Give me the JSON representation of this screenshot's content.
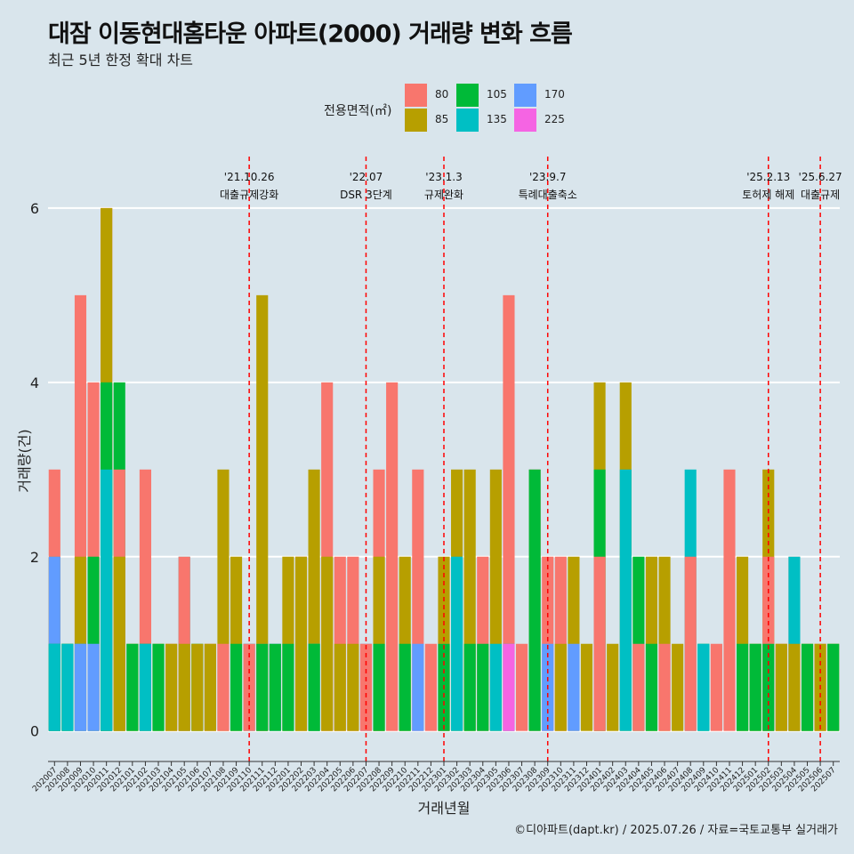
{
  "chart_data": {
    "type": "bar",
    "title": "대잠 이동현대홈타운 아파트(2000) 거래량 변화 흐름",
    "subtitle": "최근 5년 한정 확대 차트",
    "xlabel": "거래년월",
    "ylabel": "거래량(건)",
    "ylim": [
      -0.35,
      6.55
    ],
    "yticks": [
      0,
      2,
      4,
      6
    ],
    "caption": "©디아파트(dapt.kr) / 2025.07.26 / 자료=국토교통부 실거래가",
    "legend": {
      "title": "전용면적(㎡)",
      "position": "top",
      "entries": [
        {
          "label": "80",
          "color": "#f8766d"
        },
        {
          "label": "85",
          "color": "#b79f00"
        },
        {
          "label": "105",
          "color": "#00ba38"
        },
        {
          "label": "135",
          "color": "#00bfc4"
        },
        {
          "label": "170",
          "color": "#619cff"
        },
        {
          "label": "225",
          "color": "#f564e3"
        }
      ]
    },
    "months": [
      "202007",
      "202008",
      "202009",
      "202010",
      "202011",
      "202012",
      "202101",
      "202102",
      "202103",
      "202104",
      "202105",
      "202106",
      "202107",
      "202108",
      "202109",
      "202110",
      "202111",
      "202112",
      "202201",
      "202202",
      "202203",
      "202204",
      "202205",
      "202206",
      "202207",
      "202208",
      "202209",
      "202210",
      "202211",
      "202212",
      "202301",
      "202302",
      "202303",
      "202304",
      "202305",
      "202306",
      "202307",
      "202308",
      "202309",
      "202310",
      "202311",
      "202312",
      "202401",
      "202402",
      "202403",
      "202404",
      "202405",
      "202406",
      "202407",
      "202408",
      "202409",
      "202410",
      "202411",
      "202412",
      "202501",
      "202502",
      "202503",
      "202504",
      "202505",
      "202506",
      "202507"
    ],
    "monthly_values": [
      [
        {
          "s": "80",
          "v": 3
        },
        {
          "s": "85",
          "v": 2
        },
        {
          "s": "105",
          "v": 1
        },
        {
          "s": "135",
          "v": 1
        },
        {
          "s": "170",
          "v": 2
        }
      ],
      [
        {
          "s": "85",
          "v": 1
        },
        {
          "s": "105",
          "v": 1
        },
        {
          "s": "135",
          "v": 1
        }
      ],
      [
        {
          "s": "80",
          "v": 5
        },
        {
          "s": "85",
          "v": 2
        },
        {
          "s": "135",
          "v": 1
        },
        {
          "s": "170",
          "v": 1
        }
      ],
      [
        {
          "s": "80",
          "v": 4
        },
        {
          "s": "105",
          "v": 2
        },
        {
          "s": "170",
          "v": 1
        }
      ],
      [
        {
          "s": "80",
          "v": 6
        },
        {
          "s": "85",
          "v": 6
        },
        {
          "s": "105",
          "v": 4
        },
        {
          "s": "135",
          "v": 3
        }
      ],
      [
        {
          "s": "80",
          "v": 3
        },
        {
          "s": "85",
          "v": 2
        },
        {
          "s": "105",
          "v": 4
        }
      ],
      [
        {
          "s": "85",
          "v": 1
        },
        {
          "s": "105",
          "v": 1
        }
      ],
      [
        {
          "s": "80",
          "v": 3
        },
        {
          "s": "105",
          "v": 1
        },
        {
          "s": "135",
          "v": 1
        }
      ],
      [
        {
          "s": "85",
          "v": 1
        },
        {
          "s": "105",
          "v": 1
        }
      ],
      [
        {
          "s": "80",
          "v": 1
        },
        {
          "s": "85",
          "v": 1
        }
      ],
      [
        {
          "s": "85",
          "v": 1
        },
        {
          "s": "135",
          "v": 2
        },
        {
          "s": "80",
          "v": 2
        }
      ],
      [
        {
          "s": "105",
          "v": 1
        },
        {
          "s": "85",
          "v": 1
        }
      ],
      [
        {
          "s": "80",
          "v": 1
        },
        {
          "s": "85",
          "v": 1
        }
      ],
      [
        {
          "s": "80",
          "v": 1
        },
        {
          "s": "85",
          "v": 3
        }
      ],
      [
        {
          "s": "85",
          "v": 2
        },
        {
          "s": "105",
          "v": 1
        }
      ],
      [
        {
          "s": "135",
          "v": 1
        },
        {
          "s": "80",
          "v": 1
        }
      ],
      [
        {
          "s": "80",
          "v": 1
        },
        {
          "s": "85",
          "v": 5
        },
        {
          "s": "105",
          "v": 1
        }
      ],
      [
        {
          "s": "170",
          "v": 1
        },
        {
          "s": "105",
          "v": 1
        }
      ],
      [
        {
          "s": "85",
          "v": 2
        },
        {
          "s": "105",
          "v": 1
        }
      ],
      [
        {
          "s": "80",
          "v": 2
        },
        {
          "s": "85",
          "v": 2
        }
      ],
      [
        {
          "s": "135",
          "v": 1
        },
        {
          "s": "85",
          "v": 3
        },
        {
          "s": "105",
          "v": 1
        }
      ],
      [
        {
          "s": "80",
          "v": 4
        },
        {
          "s": "85",
          "v": 2
        }
      ],
      [
        {
          "s": "80",
          "v": 2
        },
        {
          "s": "85",
          "v": 1
        }
      ],
      [
        {
          "s": "80",
          "v": 2
        },
        {
          "s": "85",
          "v": 1
        }
      ],
      [
        {
          "s": "170",
          "v": 1
        },
        {
          "s": "80",
          "v": 1
        }
      ],
      [
        {
          "s": "80",
          "v": 3
        },
        {
          "s": "85",
          "v": 2
        },
        {
          "s": "105",
          "v": 1
        }
      ],
      [
        {
          "s": "80",
          "v": 4
        }
      ],
      [
        {
          "s": "85",
          "v": 2
        },
        {
          "s": "105",
          "v": 1
        }
      ],
      [
        {
          "s": "80",
          "v": 3
        },
        {
          "s": "170",
          "v": 1
        }
      ],
      [
        {
          "s": "80",
          "v": 1
        }
      ],
      [
        {
          "s": "80",
          "v": 1
        },
        {
          "s": "85",
          "v": 2
        },
        {
          "s": "105",
          "v": 1
        }
      ],
      [
        {
          "s": "85",
          "v": 3
        },
        {
          "s": "135",
          "v": 2
        }
      ],
      [
        {
          "s": "85",
          "v": 3
        },
        {
          "s": "105",
          "v": 1
        }
      ],
      [
        {
          "s": "80",
          "v": 2
        },
        {
          "s": "105",
          "v": 1
        }
      ],
      [
        {
          "s": "85",
          "v": 3
        },
        {
          "s": "135",
          "v": 1
        }
      ],
      [
        {
          "s": "80",
          "v": 5
        },
        {
          "s": "135",
          "v": 1
        },
        {
          "s": "225",
          "v": 1
        }
      ],
      [
        {
          "s": "80",
          "v": 1
        }
      ],
      [
        {
          "s": "80",
          "v": 3
        },
        {
          "s": "105",
          "v": 3
        }
      ],
      [
        {
          "s": "80",
          "v": 2
        },
        {
          "s": "170",
          "v": 1
        }
      ],
      [
        {
          "s": "80",
          "v": 2
        },
        {
          "s": "85",
          "v": 1
        }
      ],
      [
        {
          "s": "85",
          "v": 2
        },
        {
          "s": "170",
          "v": 1
        }
      ],
      [
        {
          "s": "85",
          "v": 1
        }
      ],
      [
        {
          "s": "80",
          "v": 2
        },
        {
          "s": "85",
          "v": 4
        },
        {
          "s": "105",
          "v": 3
        }
      ],
      [
        {
          "s": "85",
          "v": 1
        }
      ],
      [
        {
          "s": "85",
          "v": 4
        },
        {
          "s": "135",
          "v": 3
        }
      ],
      [
        {
          "s": "80",
          "v": 1
        },
        {
          "s": "105",
          "v": 2
        }
      ],
      [
        {
          "s": "85",
          "v": 2
        },
        {
          "s": "105",
          "v": 1
        }
      ],
      [
        {
          "s": "80",
          "v": 1
        },
        {
          "s": "85",
          "v": 2
        }
      ],
      [
        {
          "s": "85",
          "v": 1
        }
      ],
      [
        {
          "s": "80",
          "v": 2
        },
        {
          "s": "135",
          "v": 3
        }
      ],
      [
        {
          "s": "105",
          "v": 1
        },
        {
          "s": "135",
          "v": 1
        }
      ],
      [
        {
          "s": "80",
          "v": 1
        }
      ],
      [
        {
          "s": "80",
          "v": 3
        }
      ],
      [
        {
          "s": "85",
          "v": 2
        },
        {
          "s": "105",
          "v": 1
        }
      ],
      [
        {
          "s": "85",
          "v": 1
        },
        {
          "s": "105",
          "v": 1
        }
      ],
      [
        {
          "s": "80",
          "v": 2
        },
        {
          "s": "85",
          "v": 3
        },
        {
          "s": "105",
          "v": 1
        }
      ],
      [
        {
          "s": "80",
          "v": 1
        },
        {
          "s": "85",
          "v": 1
        }
      ],
      [
        {
          "s": "80",
          "v": 2
        },
        {
          "s": "85",
          "v": 1
        },
        {
          "s": "135",
          "v": 2
        }
      ],
      [
        {
          "s": "85",
          "v": 1
        },
        {
          "s": "105",
          "v": 1
        }
      ],
      [
        {
          "s": "80",
          "v": 1
        },
        {
          "s": "85",
          "v": 1
        }
      ],
      [
        {
          "s": "85",
          "v": 1
        },
        {
          "s": "105",
          "v": 1
        }
      ]
    ],
    "annotations": [
      {
        "month": "202110",
        "date": "'21.10.26",
        "label": "대출규제강화"
      },
      {
        "month": "202207",
        "date": "'22.07",
        "label": "DSR 3단계"
      },
      {
        "month": "202301",
        "date": "'23.1.3",
        "label": "규제완화"
      },
      {
        "month": "202309",
        "date": "'23.9.7",
        "label": "특례대출축소"
      },
      {
        "month": "202502",
        "date": "'25.2.13",
        "label": "토허제 해제"
      },
      {
        "month": "202506",
        "date": "'25.6.27",
        "label": "대출규제"
      }
    ]
  }
}
